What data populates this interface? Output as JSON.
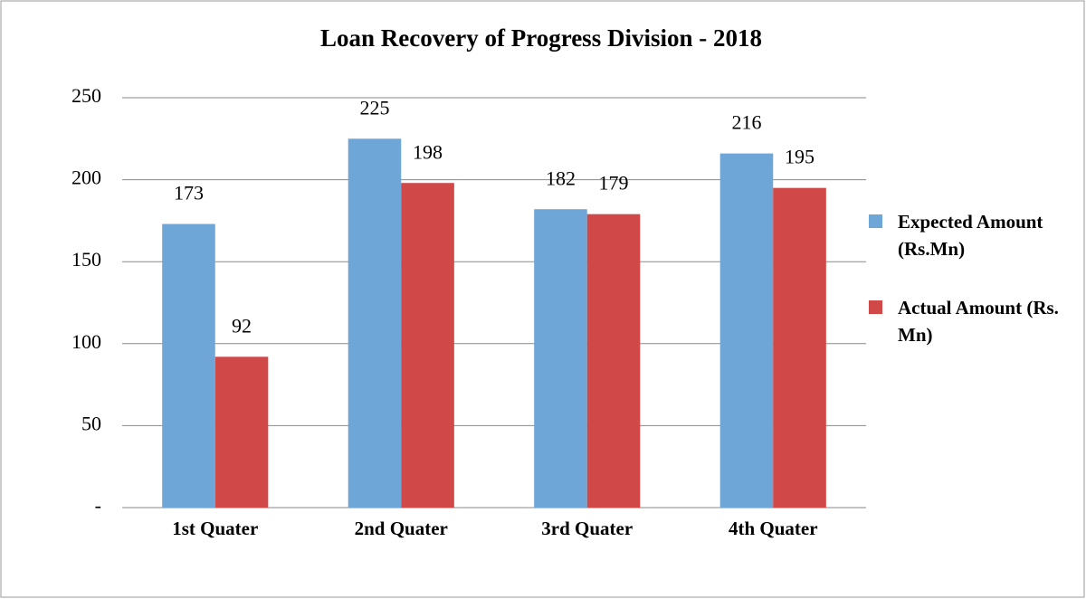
{
  "chart_data": {
    "type": "bar",
    "title": "Loan Recovery of Progress Division - 2018",
    "categories": [
      "1st Quater",
      "2nd Quater",
      "3rd Quater",
      "4th Quater"
    ],
    "series": [
      {
        "name": "Expected Amount (Rs.Mn)",
        "color": "#6fa6d8",
        "values": [
          173,
          225,
          182,
          216
        ]
      },
      {
        "name": "Actual Amount (Rs. Mn)",
        "color": "#d04848",
        "values": [
          92,
          198,
          179,
          195
        ]
      }
    ],
    "ylim": [
      0,
      250
    ],
    "yticks": [
      {
        "value": 0,
        "label": "-"
      },
      50,
      100,
      150,
      200,
      250
    ],
    "grid": true,
    "legend": "right"
  }
}
